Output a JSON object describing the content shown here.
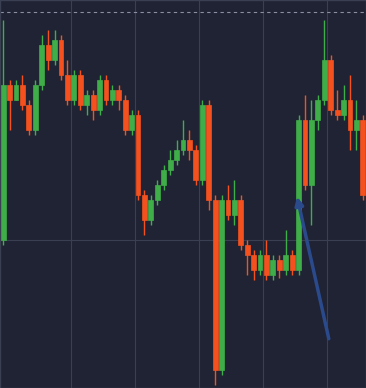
{
  "chart_data": {
    "type": "candlestick",
    "x": [
      0,
      1,
      2,
      3,
      4,
      5,
      6,
      7,
      8,
      9,
      10,
      11,
      12,
      13,
      14,
      15,
      16,
      17,
      18,
      19,
      20,
      21,
      22,
      23,
      24,
      25,
      26,
      27,
      28,
      29,
      30,
      31,
      32,
      33,
      34,
      35,
      36,
      37,
      38,
      39,
      40,
      41,
      42,
      43,
      44,
      45,
      46,
      47,
      48,
      49,
      50,
      51,
      52,
      53,
      54,
      55,
      56
    ],
    "open": [
      148,
      303,
      288,
      303,
      283,
      258,
      303,
      343,
      328,
      348,
      313,
      288,
      313,
      283,
      293,
      278,
      308,
      288,
      298,
      288,
      258,
      273,
      193,
      168,
      188,
      203,
      218,
      228,
      238,
      248,
      238,
      208,
      283,
      188,
      18,
      188,
      173,
      188,
      143,
      133,
      118,
      133,
      113,
      128,
      118,
      133,
      118,
      268,
      203,
      268,
      288,
      328,
      278,
      273,
      288,
      258,
      268
    ],
    "high": [
      368,
      308,
      308,
      313,
      288,
      308,
      353,
      358,
      358,
      353,
      328,
      318,
      318,
      298,
      298,
      313,
      313,
      303,
      303,
      293,
      278,
      278,
      198,
      193,
      208,
      223,
      238,
      248,
      268,
      258,
      243,
      288,
      288,
      193,
      193,
      203,
      208,
      193,
      148,
      138,
      138,
      148,
      133,
      133,
      158,
      138,
      273,
      293,
      288,
      293,
      368,
      333,
      298,
      303,
      313,
      288,
      273
    ],
    "low": [
      143,
      258,
      288,
      278,
      253,
      253,
      298,
      318,
      323,
      308,
      283,
      283,
      278,
      273,
      268,
      273,
      283,
      283,
      278,
      253,
      253,
      188,
      153,
      163,
      183,
      198,
      213,
      223,
      233,
      228,
      203,
      203,
      178,
      3,
      13,
      168,
      163,
      138,
      113,
      108,
      113,
      108,
      108,
      110,
      113,
      113,
      113,
      198,
      163,
      258,
      283,
      273,
      268,
      268,
      238,
      238,
      188
    ],
    "close": [
      303,
      288,
      303,
      283,
      258,
      303,
      343,
      328,
      348,
      313,
      288,
      313,
      283,
      293,
      278,
      308,
      288,
      298,
      288,
      258,
      273,
      193,
      168,
      188,
      203,
      218,
      228,
      238,
      248,
      238,
      208,
      283,
      188,
      18,
      188,
      173,
      188,
      143,
      133,
      118,
      133,
      113,
      128,
      118,
      133,
      118,
      268,
      203,
      268,
      288,
      328,
      278,
      273,
      288,
      258,
      268,
      193
    ],
    "colors": [
      "#3fae49",
      "#f4511e",
      "#3fae49",
      "#f4511e",
      "#f4511e",
      "#3fae49",
      "#3fae49",
      "#f4511e",
      "#3fae49",
      "#f4511e",
      "#f4511e",
      "#3fae49",
      "#f4511e",
      "#3fae49",
      "#f4511e",
      "#3fae49",
      "#f4511e",
      "#3fae49",
      "#f4511e",
      "#f4511e",
      "#3fae49",
      "#f4511e",
      "#f4511e",
      "#3fae49",
      "#3fae49",
      "#3fae49",
      "#3fae49",
      "#3fae49",
      "#3fae49",
      "#f4511e",
      "#f4511e",
      "#3fae49",
      "#f4511e",
      "#f4511e",
      "#3fae49",
      "#f4511e",
      "#3fae49",
      "#f4511e",
      "#f4511e",
      "#f4511e",
      "#3fae49",
      "#f4511e",
      "#3fae49",
      "#f4511e",
      "#3fae49",
      "#f4511e",
      "#3fae49",
      "#f4511e",
      "#3fae49",
      "#3fae49",
      "#3fae49",
      "#f4511e",
      "#f4511e",
      "#3fae49",
      "#f4511e",
      "#3fae49",
      "#f4511e"
    ],
    "reference_line": 376,
    "xlim": [
      -0.5,
      56.5
    ],
    "ylim": [
      0,
      388
    ],
    "xticks": [
      10.5,
      20.5,
      30.5,
      40.5,
      50.5
    ],
    "yticks": [
      148
    ],
    "grid": true,
    "tick_labels": false
  }
}
